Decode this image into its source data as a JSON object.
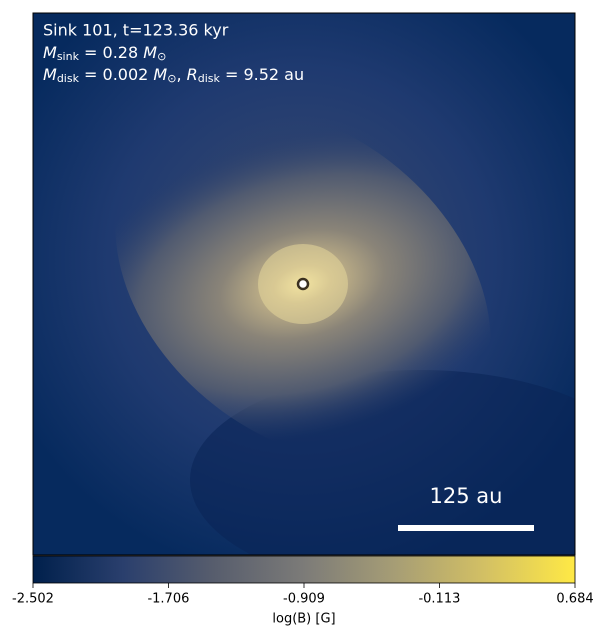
{
  "chart_data": {
    "type": "image",
    "annotation": {
      "line1": "Sink 101, t=123.36 kyr",
      "line2": [
        {
          "text": "M",
          "style": "italic"
        },
        {
          "text": "sink",
          "style": "sub"
        },
        {
          "text": " = 0.28 ",
          "style": "normal"
        },
        {
          "text": "M",
          "style": "italic"
        },
        {
          "text": "⊙",
          "style": "sub"
        }
      ],
      "line3": [
        {
          "text": "M",
          "style": "italic"
        },
        {
          "text": "disk",
          "style": "sub"
        },
        {
          "text": " = 0.002 ",
          "style": "normal"
        },
        {
          "text": "M",
          "style": "italic"
        },
        {
          "text": "⊙",
          "style": "sub"
        },
        {
          "text": ", ",
          "style": "normal"
        },
        {
          "text": "R",
          "style": "italic"
        },
        {
          "text": "disk",
          "style": "sub"
        },
        {
          "text": " = 9.52 au",
          "style": "normal"
        }
      ]
    },
    "scalebar_label": "125 au",
    "colorbar": {
      "label": "log(B) [G]",
      "lim": [
        -2.502,
        0.684
      ],
      "ticks": [
        -2.502,
        -1.706,
        -0.909,
        -0.113,
        0.684
      ],
      "colors": [
        "#00204c",
        "#2a3f6d",
        "#575d6d",
        "#7c7b78",
        "#a69d75",
        "#d3c064",
        "#ffe945"
      ]
    }
  }
}
